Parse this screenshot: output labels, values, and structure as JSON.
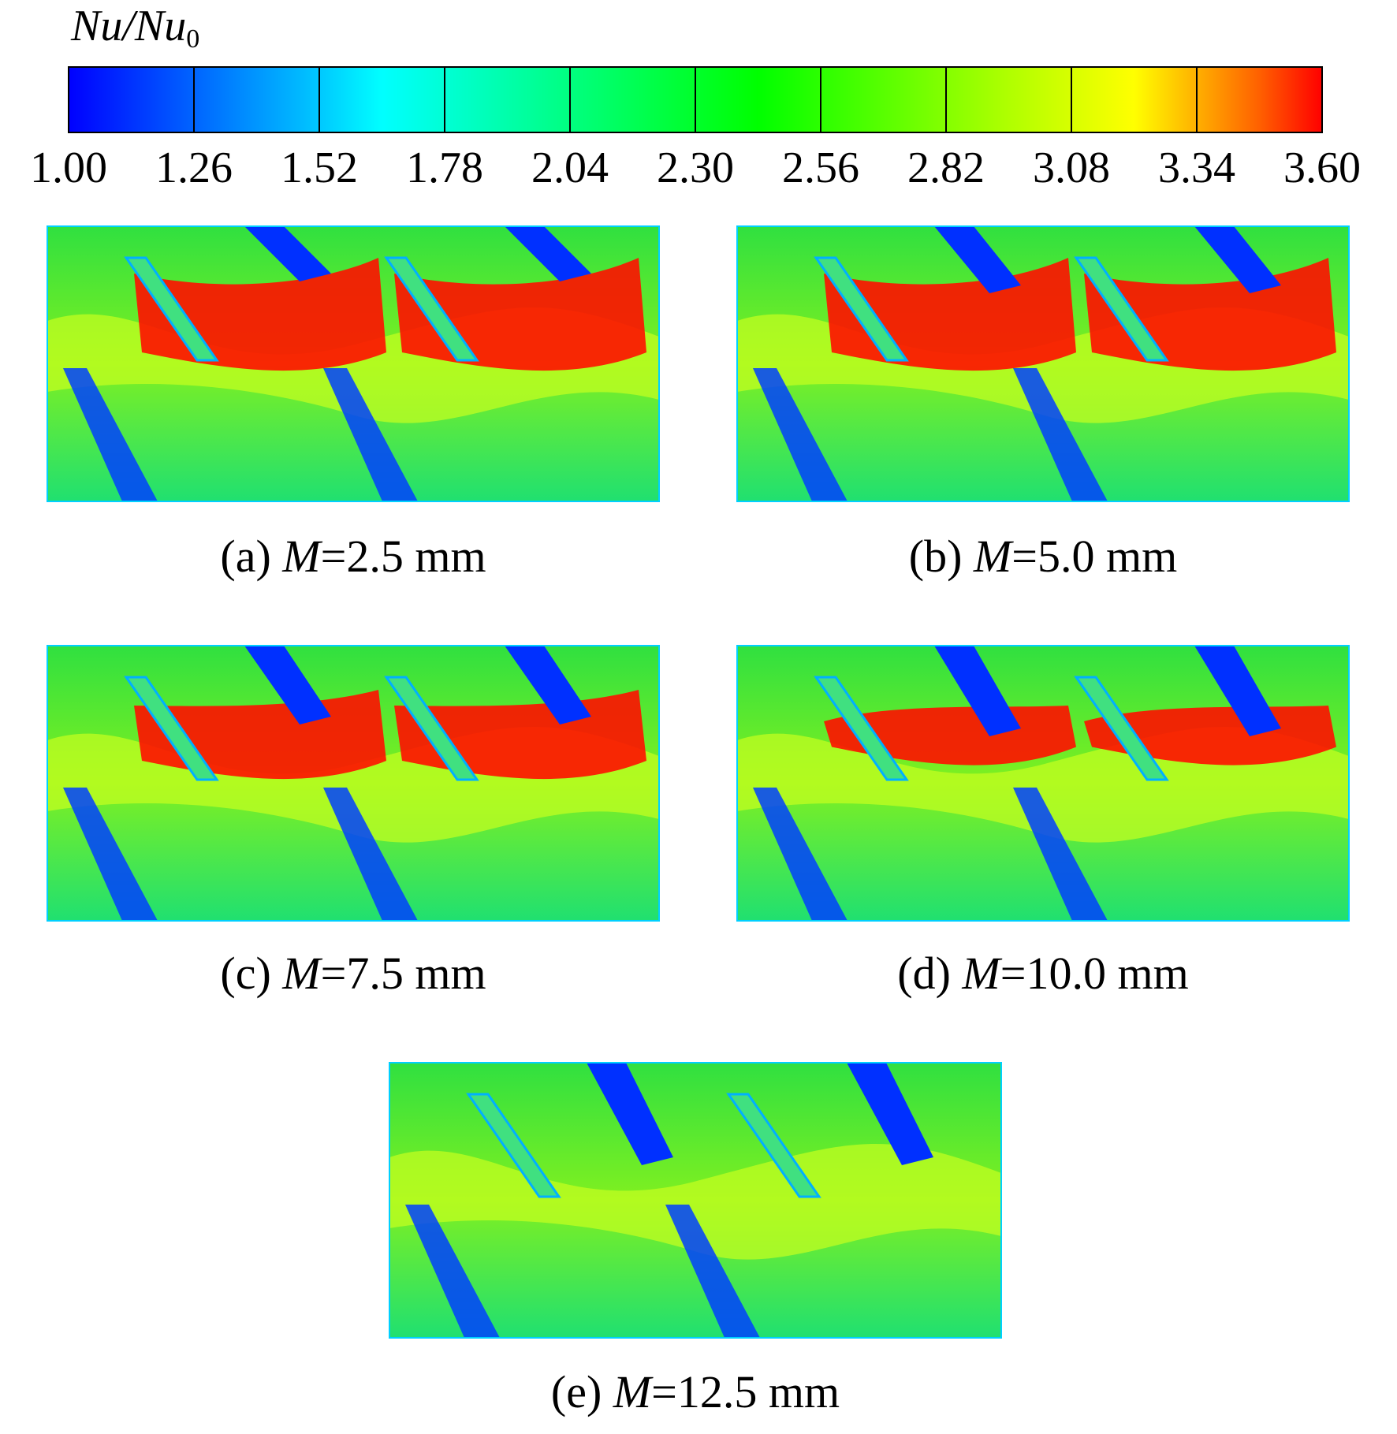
{
  "colorbar": {
    "title": "Nu/Nu",
    "title_subscript": "0",
    "ticks": [
      {
        "value": 1.0,
        "label": "1.00"
      },
      {
        "value": 1.26,
        "label": "1.26"
      },
      {
        "value": 1.52,
        "label": "1.52"
      },
      {
        "value": 1.78,
        "label": "1.78"
      },
      {
        "value": 2.04,
        "label": "2.04"
      },
      {
        "value": 2.3,
        "label": "2.30"
      },
      {
        "value": 2.56,
        "label": "2.56"
      },
      {
        "value": 2.82,
        "label": "2.82"
      },
      {
        "value": 3.08,
        "label": "3.08"
      },
      {
        "value": 3.34,
        "label": "3.34"
      },
      {
        "value": 3.6,
        "label": "3.60"
      }
    ]
  },
  "panels": [
    {
      "prefix": "(a) ",
      "variable": "M",
      "rest": "=2.5 mm"
    },
    {
      "prefix": "(b) ",
      "variable": "M",
      "rest": "=5.0 mm"
    },
    {
      "prefix": "(c) ",
      "variable": "M",
      "rest": "=7.5 mm"
    },
    {
      "prefix": "(d) ",
      "variable": "M",
      "rest": "=10.0 mm"
    },
    {
      "prefix": "(e) ",
      "variable": "M",
      "rest": "=12.5 mm"
    }
  ]
}
